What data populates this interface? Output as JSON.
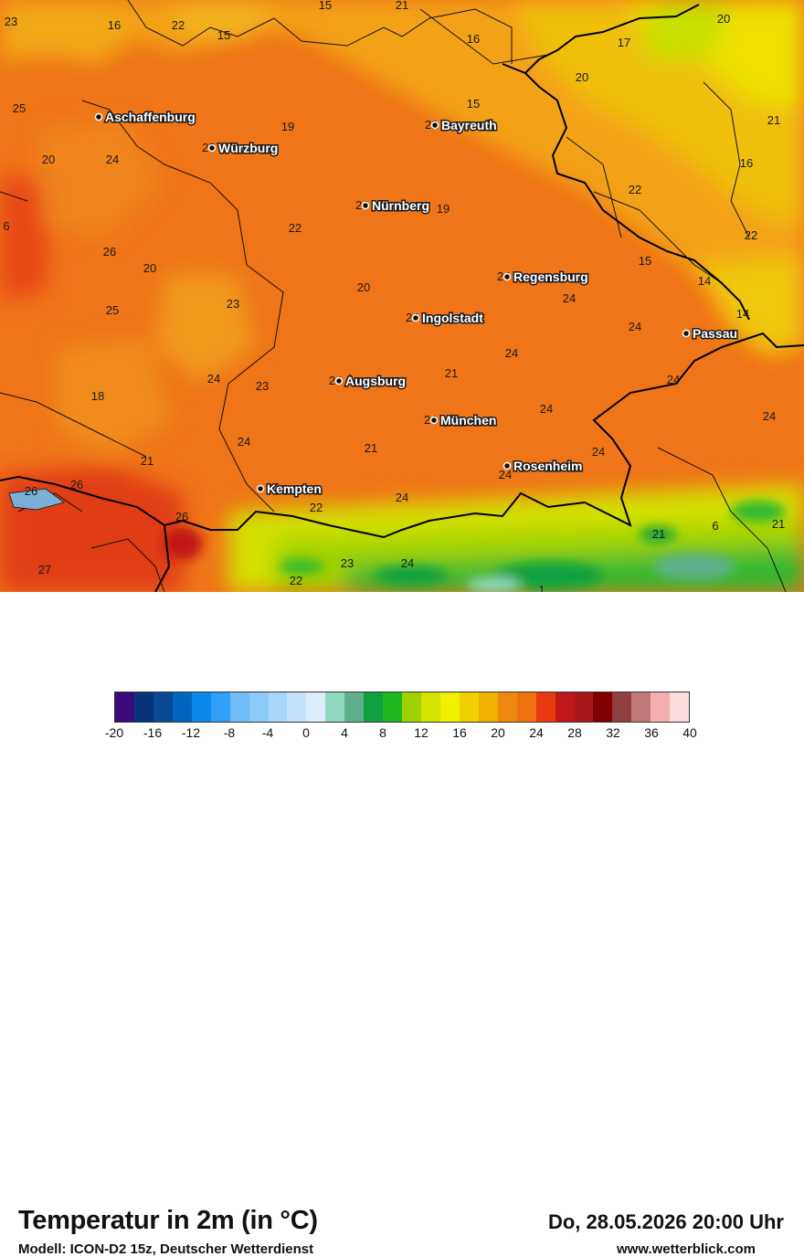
{
  "map": {
    "cities": [
      {
        "name": "Aschaffenburg",
        "temp": ""
      },
      {
        "name": "Würzburg",
        "temp": "25"
      },
      {
        "name": "Bayreuth",
        "temp": "22"
      },
      {
        "name": "Nürnberg",
        "temp": "24"
      },
      {
        "name": "Regensburg",
        "temp": "24"
      },
      {
        "name": "Ingolstadt",
        "temp": "24"
      },
      {
        "name": "Passau",
        "temp": ""
      },
      {
        "name": "Augsburg",
        "temp": "24"
      },
      {
        "name": "München",
        "temp": "24"
      },
      {
        "name": "Rosenheim",
        "temp": ""
      },
      {
        "name": "Kempten",
        "temp": ""
      }
    ],
    "values": [
      "23",
      "16",
      "22",
      "15",
      "21",
      "15",
      "16",
      "20",
      "17",
      "20",
      "25",
      "19",
      "15",
      "21",
      "20",
      "24",
      "16",
      "22",
      "22",
      "19",
      "6",
      "26",
      "22",
      "20",
      "15",
      "14",
      "23",
      "20",
      "25",
      "24",
      "24",
      "14",
      "24",
      "24",
      "23",
      "18",
      "21",
      "24",
      "24",
      "24",
      "24",
      "21",
      "21",
      "24",
      "24",
      "26",
      "26",
      "26",
      "22",
      "24",
      "21",
      "6",
      "21",
      "27",
      "23",
      "24",
      "22",
      "1"
    ]
  },
  "footer": {
    "title": "Temperatur in 2m (in °C)",
    "model": "Modell: ICON-D2 15z, Deutscher Wetterdienst",
    "datetime": "Do, 28.05.2026 20:00 Uhr",
    "website": "www.wetterblick.com"
  },
  "legend": {
    "colors": [
      "#3a0a78",
      "#06357a",
      "#0a4a92",
      "#0066c0",
      "#0a88ea",
      "#2fa0f6",
      "#70bcf8",
      "#8ccaf8",
      "#a8d6fa",
      "#c4e2fa",
      "#dcecfa",
      "#90d8c0",
      "#60b090",
      "#10a040",
      "#20b820",
      "#a0d000",
      "#d4e400",
      "#f0f000",
      "#f0d000",
      "#f0b000",
      "#f08810",
      "#f07010",
      "#e83a10",
      "#c01818",
      "#a81818",
      "#800000",
      "#904040",
      "#c07878",
      "#f4b0b0",
      "#fcdcdc"
    ],
    "ticks": [
      "-20",
      "-16",
      "-12",
      "-8",
      "-4",
      "0",
      "4",
      "8",
      "12",
      "16",
      "20",
      "24",
      "28",
      "32",
      "36",
      "40"
    ]
  }
}
